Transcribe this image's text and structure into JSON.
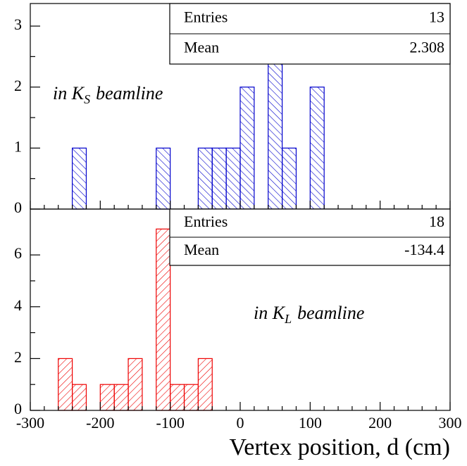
{
  "chart_data": [
    {
      "type": "histogram",
      "bins": [
        -300,
        -280,
        -260,
        -240,
        -220,
        -200,
        -180,
        -160,
        -140,
        -120,
        -100,
        -80,
        -60,
        -40,
        -20,
        0,
        20,
        40,
        60,
        80,
        100,
        120,
        140,
        160,
        180,
        200,
        220,
        240,
        260,
        280,
        300
      ],
      "values": [
        0,
        0,
        0,
        1,
        0,
        0,
        0,
        0,
        0,
        1,
        0,
        0,
        1,
        1,
        1,
        2,
        0,
        3,
        1,
        0,
        2,
        0,
        0,
        0,
        0,
        0,
        0,
        0,
        0,
        0
      ],
      "color": "#0000cc",
      "hatch": "backslash",
      "xlim": [
        -300,
        300
      ],
      "xticks": [
        -300,
        -200,
        -100,
        0,
        100,
        200,
        300
      ],
      "ylim": [
        0,
        3.37
      ],
      "yticks": [
        0,
        1,
        2,
        3
      ],
      "stats": {
        "entries_label": "Entries",
        "entries": "13",
        "mean_label": "Mean",
        "mean": "2.308"
      },
      "annotation": {
        "text": "in K",
        "sub": "S",
        "rest": "beamline"
      }
    },
    {
      "type": "histogram",
      "bins": [
        -300,
        -280,
        -260,
        -240,
        -220,
        -200,
        -180,
        -160,
        -140,
        -120,
        -100,
        -80,
        -60,
        -40,
        -20,
        0,
        20,
        40,
        60,
        80,
        100,
        120,
        140,
        160,
        180,
        200,
        220,
        240,
        260,
        280,
        300
      ],
      "values": [
        0,
        0,
        2,
        1,
        0,
        1,
        1,
        2,
        0,
        7,
        1,
        1,
        2,
        0,
        0,
        0,
        0,
        0,
        0,
        0,
        0,
        0,
        0,
        0,
        0,
        0,
        0,
        0,
        0,
        0
      ],
      "color": "#ee0000",
      "hatch": "slash",
      "xlim": [
        -300,
        300
      ],
      "xticks": [
        -300,
        -200,
        -100,
        0,
        100,
        200,
        300
      ],
      "xlabel": "Vertex position, d (cm)",
      "ylim": [
        0,
        7.77
      ],
      "yticks": [
        0,
        2,
        4,
        6
      ],
      "stats": {
        "entries_label": "Entries",
        "entries": "18",
        "mean_label": "Mean",
        "mean": "-134.4"
      },
      "annotation": {
        "text": "in K",
        "sub": "L",
        "rest": "beamline"
      }
    }
  ]
}
